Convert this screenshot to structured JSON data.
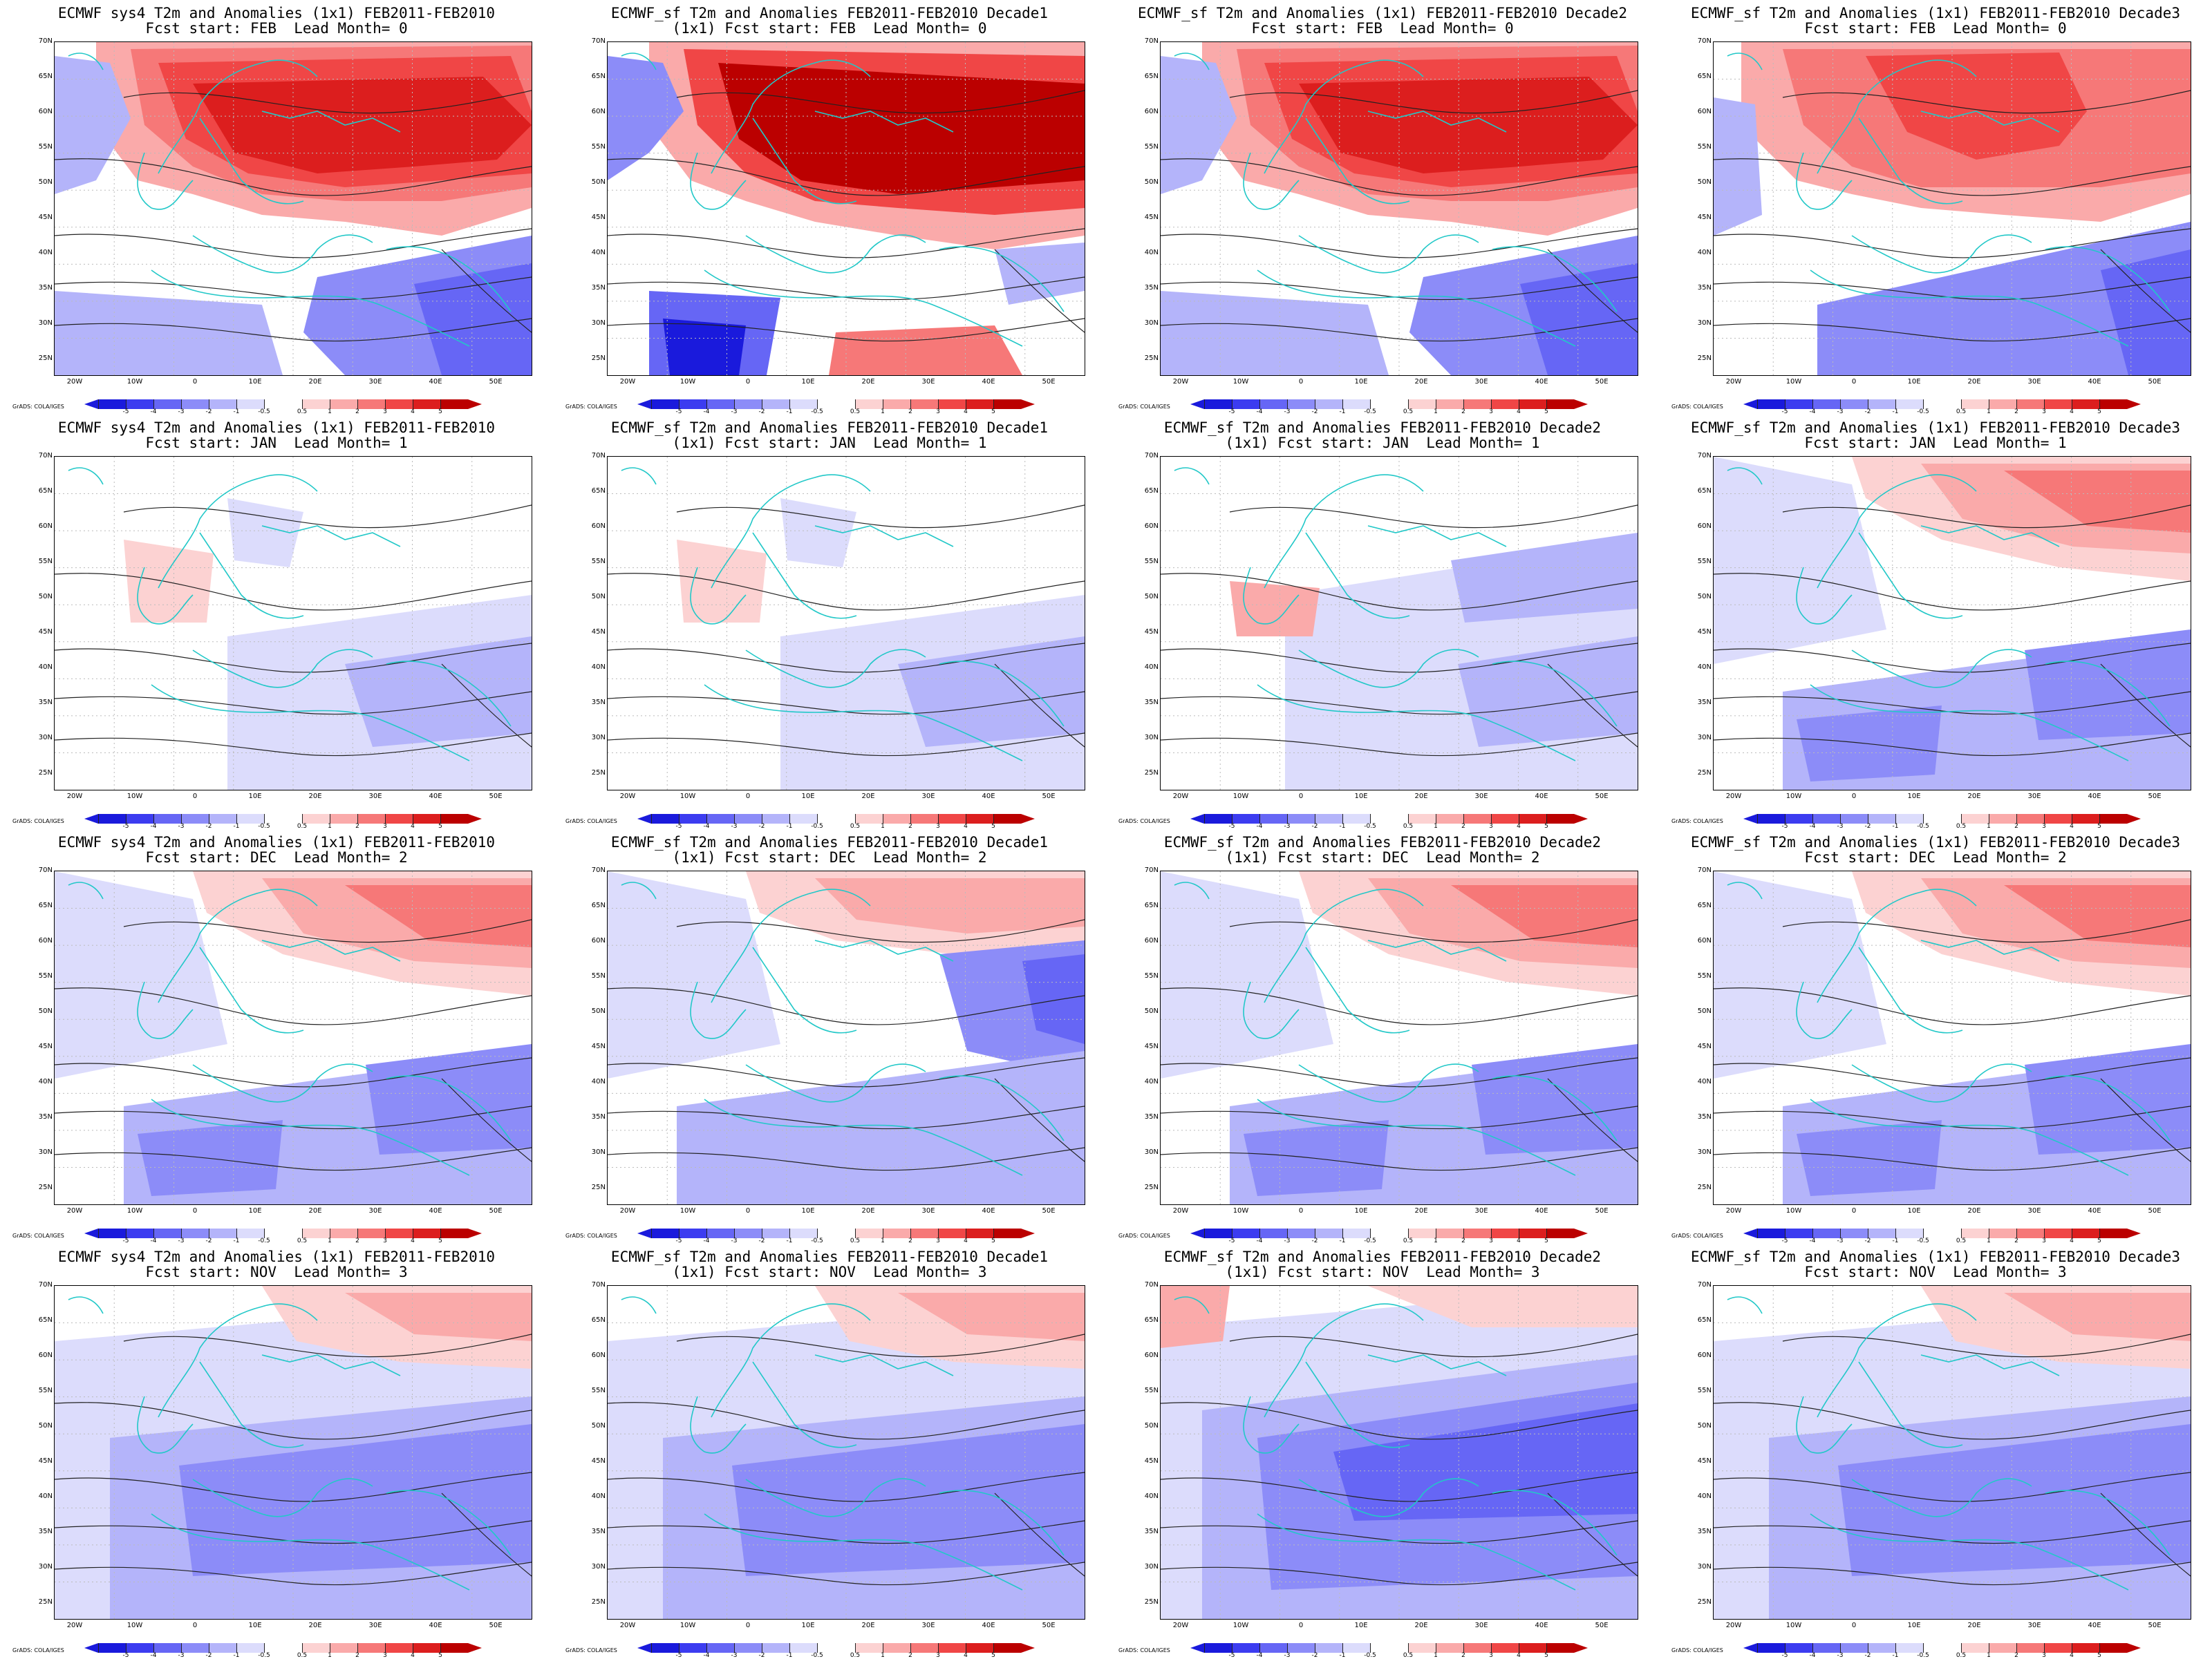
{
  "credit": "GrADS: COLA/IGES",
  "lat_labels": [
    "70N",
    "65N",
    "60N",
    "55N",
    "50N",
    "45N",
    "40N",
    "35N",
    "30N",
    "25N"
  ],
  "lon_labels": [
    "20W",
    "10W",
    "0",
    "10E",
    "20E",
    "30E",
    "40E",
    "50E"
  ],
  "colorbar": {
    "labels": [
      "-5",
      "-4",
      "-3",
      "-2",
      "-1",
      "-0.5",
      "0.5",
      "1",
      "2",
      "3",
      "4",
      "5"
    ],
    "colors": [
      "#1a1adc",
      "#3c3cf0",
      "#6666f5",
      "#8c8cf8",
      "#b4b4fa",
      "#dcdcfc",
      "#ffffff",
      "#fcd2d2",
      "#faaaaa",
      "#f67878",
      "#f04646",
      "#dc1e1e",
      "#bb0000"
    ]
  },
  "panels": [
    {
      "id": "feb-sys4",
      "title1": "ECMWF sys4 T2m and Anomalies (1x1) FEB2011-FEB2010",
      "title2": "Fcst start: FEB  Lead Month= 0",
      "anomaly": "warm-strong"
    },
    {
      "id": "feb-d1",
      "title1": "ECMWF_sf T2m and Anomalies FEB2011-FEB2010 Decade1",
      "title2": "(1x1) Fcst start: FEB  Lead Month= 0",
      "anomaly": "warm-extreme"
    },
    {
      "id": "feb-d2",
      "title1": "ECMWF_sf T2m and Anomalies (1x1) FEB2011-FEB2010 Decade2",
      "title2": "Fcst start: FEB  Lead Month= 0",
      "anomaly": "warm-strong"
    },
    {
      "id": "feb-d3",
      "title1": "ECMWF_sf T2m and Anomalies (1x1) FEB2011-FEB2010 Decade3",
      "title2": "Fcst start: FEB  Lead Month= 0",
      "anomaly": "warm-moderate"
    },
    {
      "id": "jan-sys4",
      "title1": "ECMWF sys4 T2m and Anomalies (1x1) FEB2011-FEB2010",
      "title2": "Fcst start: JAN  Lead Month= 1",
      "anomaly": "weak"
    },
    {
      "id": "jan-d1",
      "title1": "ECMWF_sf T2m and Anomalies FEB2011-FEB2010 Decade1",
      "title2": "(1x1) Fcst start: JAN  Lead Month= 1",
      "anomaly": "weak"
    },
    {
      "id": "jan-d2",
      "title1": "ECMWF_sf T2m and Anomalies FEB2011-FEB2010 Decade2",
      "title2": "(1x1) Fcst start: JAN  Lead Month= 1",
      "anomaly": "weak-cool"
    },
    {
      "id": "jan-d3",
      "title1": "ECMWF_sf T2m and Anomalies (1x1) FEB2011-FEB2010 Decade3",
      "title2": "Fcst start: JAN  Lead Month= 1",
      "anomaly": "north-warm"
    },
    {
      "id": "dec-sys4",
      "title1": "ECMWF sys4 T2m and Anomalies (1x1) FEB2011-FEB2010",
      "title2": "Fcst start: DEC  Lead Month= 2",
      "anomaly": "north-warm"
    },
    {
      "id": "dec-d1",
      "title1": "ECMWF_sf T2m and Anomalies FEB2011-FEB2010 Decade1",
      "title2": "(1x1) Fcst start: DEC  Lead Month= 2",
      "anomaly": "north-warm-east-cool"
    },
    {
      "id": "dec-d2",
      "title1": "ECMWF_sf T2m and Anomalies FEB2011-FEB2010 Decade2",
      "title2": "(1x1) Fcst start: DEC  Lead Month= 2",
      "anomaly": "north-warm"
    },
    {
      "id": "dec-d3",
      "title1": "ECMWF_sf T2m and Anomalies (1x1) FEB2011-FEB2010 Decade3",
      "title2": "Fcst start: DEC  Lead Month= 2",
      "anomaly": "north-warm"
    },
    {
      "id": "nov-sys4",
      "title1": "ECMWF sys4 T2m and Anomalies (1x1) FEB2011-FEB2010",
      "title2": "Fcst start: NOV  Lead Month= 3",
      "anomaly": "cool"
    },
    {
      "id": "nov-d1",
      "title1": "ECMWF_sf T2m and Anomalies FEB2011-FEB2010 Decade1",
      "title2": "(1x1) Fcst start: NOV  Lead Month= 3",
      "anomaly": "cool"
    },
    {
      "id": "nov-d2",
      "title1": "ECMWF_sf T2m and Anomalies FEB2011-FEB2010 Decade2",
      "title2": "(1x1) Fcst start: NOV  Lead Month= 3",
      "anomaly": "cool-strong"
    },
    {
      "id": "nov-d3",
      "title1": "ECMWF_sf T2m and Anomalies (1x1) FEB2011-FEB2010 Decade3",
      "title2": "Fcst start: NOV  Lead Month= 3",
      "anomaly": "cool"
    }
  ]
}
